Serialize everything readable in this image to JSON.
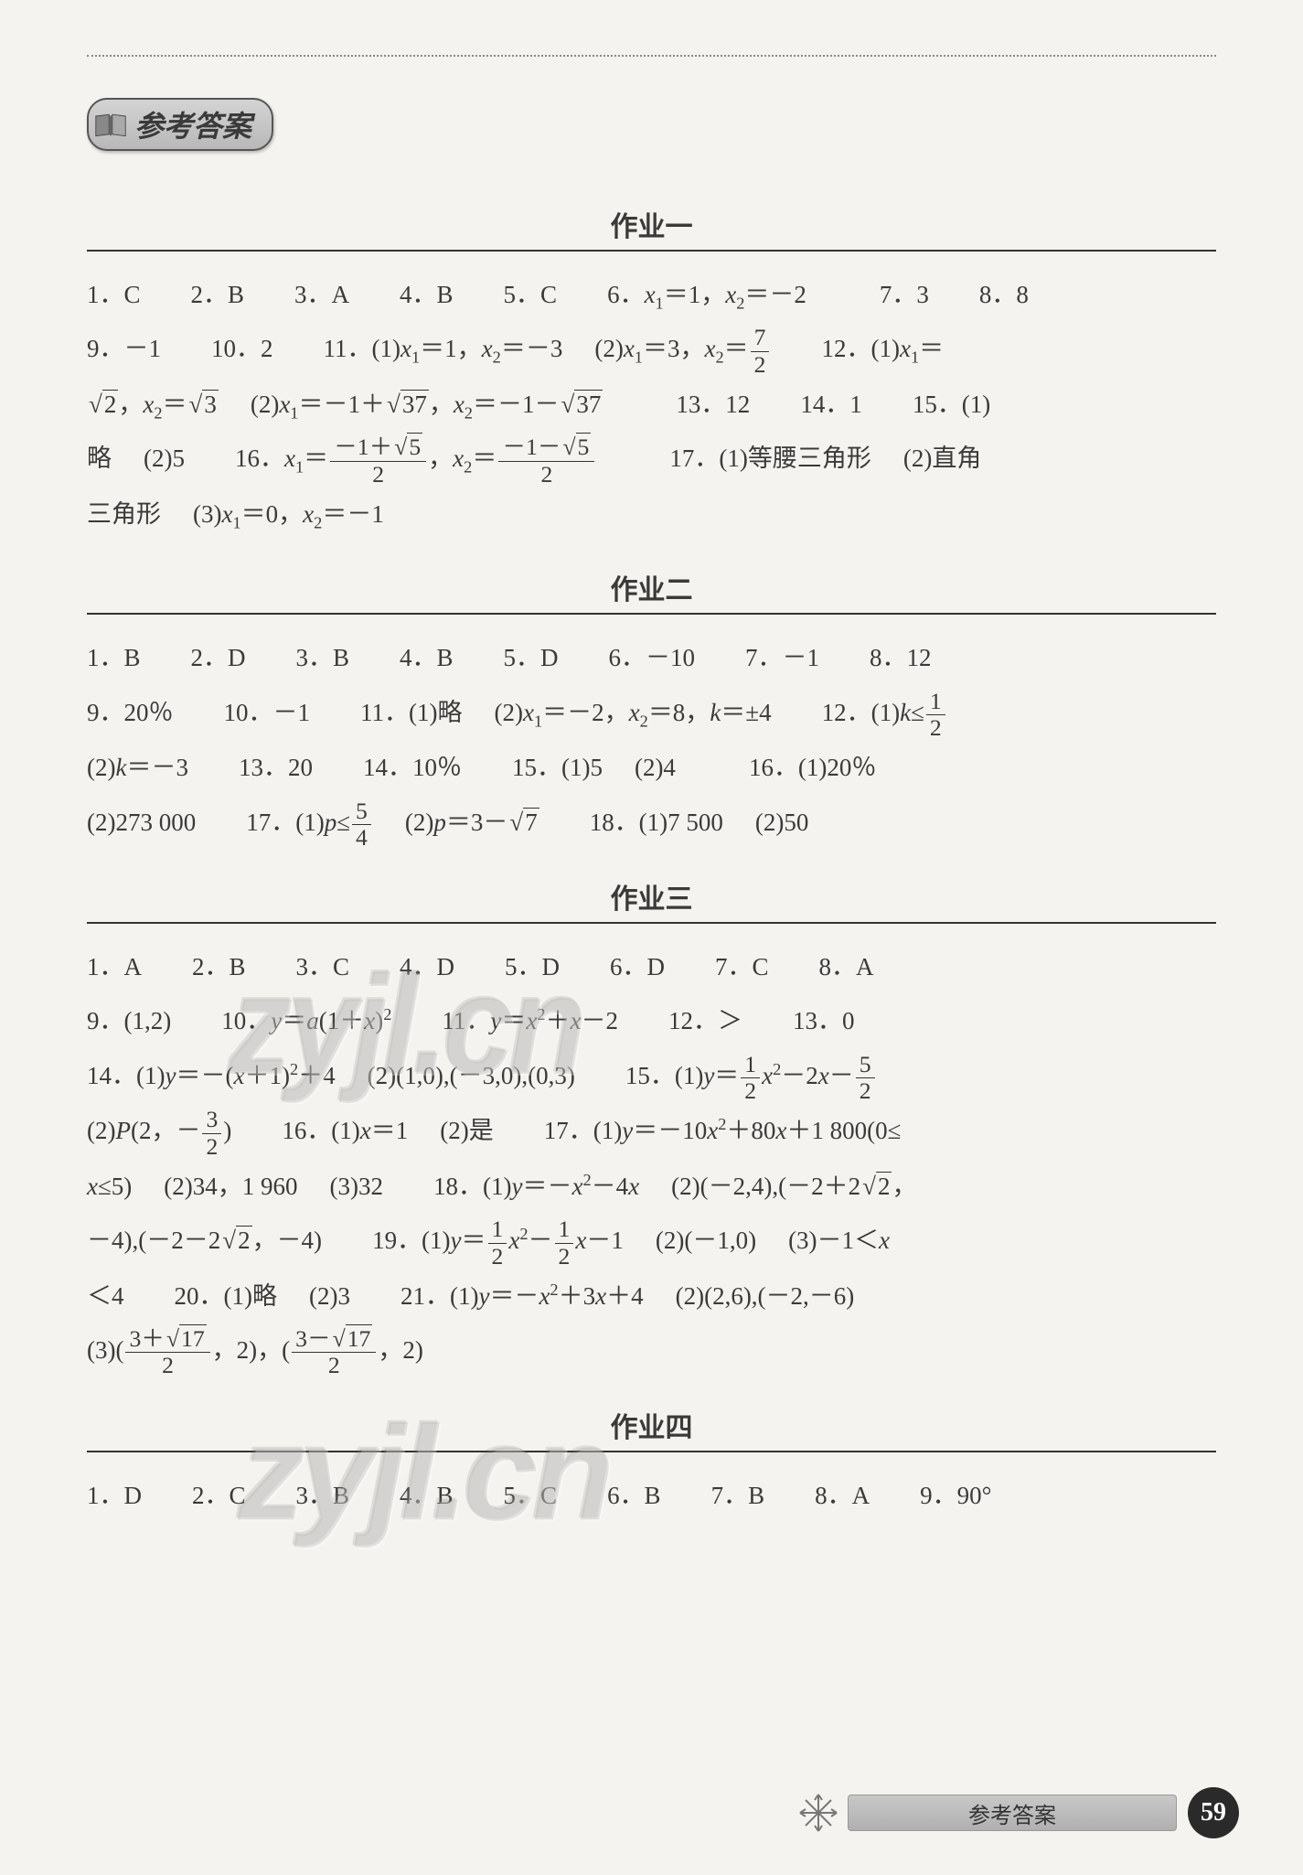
{
  "page_title": "参考答案",
  "sections": [
    {
      "heading": "作业一",
      "answers_html": "1．C<span class='gap g2'></span>2．B<span class='gap g2'></span>3．A<span class='gap g2'></span>4．B<span class='gap g2'></span>5．C<span class='gap g2'></span>6．<span class='ital'>x</span><sub>1</sub>＝1，<span class='ital'>x</span><sub>2</sub>＝－2<span class='gap g3'></span>7．3<span class='gap g2'></span>8．8<br>9．－1<span class='gap g2'></span>10．2<span class='gap g2'></span>11．(1)<span class='ital'>x</span><sub>1</sub>＝1，<span class='ital'>x</span><sub>2</sub>＝－3<span class='gap g1'></span>(2)<span class='ital'>x</span><sub>1</sub>＝3，<span class='ital'>x</span><sub>2</sub>＝<span class='frac'><span class='num'>7</span><span class='den'>2</span></span><span class='gap g2'></span>12．(1)<span class='ital'>x</span><sub>1</sub>＝<br><span class='sqrt'><span class='rad'>2</span></span>，<span class='ital'>x</span><sub>2</sub>＝<span class='sqrt'><span class='rad'>3</span></span><span class='gap g1'></span>(2)<span class='ital'>x</span><sub>1</sub>＝－1＋<span class='sqrt'><span class='rad'>37</span></span>，<span class='ital'>x</span><sub>2</sub>＝－1－<span class='sqrt'><span class='rad'>37</span></span><span class='gap g3'></span>13．12<span class='gap g2'></span>14．1<span class='gap g2'></span>15．(1)<br><span class='cn'>略</span><span class='gap g1'></span>(2)5<span class='gap g2'></span>16．<span class='ital'>x</span><sub>1</sub>＝<span class='frac'><span class='num'>－1＋<span class='sqrt'><span class='rad'>5</span></span></span><span class='den'>2</span></span>，<span class='ital'>x</span><sub>2</sub>＝<span class='frac'><span class='num'>－1－<span class='sqrt'><span class='rad'>5</span></span></span><span class='den'>2</span></span><span class='gap g3'></span>17．(1)<span class='cn'>等腰三角形</span><span class='gap g1'></span>(2)<span class='cn'>直角</span><br><span class='cn'>三角形</span><span class='gap g1'></span>(3)<span class='ital'>x</span><sub>1</sub>＝0，<span class='ital'>x</span><sub>2</sub>＝－1"
    },
    {
      "heading": "作业二",
      "answers_html": "1．B<span class='gap g2'></span>2．D<span class='gap g2'></span>3．B<span class='gap g2'></span>4．B<span class='gap g2'></span>5．D<span class='gap g2'></span>6．－10<span class='gap g2'></span>7．－1<span class='gap g2'></span>8．12<br>9．20％<span class='gap g2'></span>10．－1<span class='gap g2'></span>11．(1)<span class='cn'>略</span><span class='gap g1'></span>(2)<span class='ital'>x</span><sub>1</sub>＝－2，<span class='ital'>x</span><sub>2</sub>＝8，<span class='ital'>k</span>＝±4<span class='gap g2'></span>12．(1)<span class='ital'>k</span>≤<span class='frac'><span class='num'>1</span><span class='den'>2</span></span><br>(2)<span class='ital'>k</span>＝－3<span class='gap g2'></span>13．20<span class='gap g2'></span>14．10％<span class='gap g2'></span>15．(1)5<span class='gap g1'></span>(2)4<span class='gap g3'></span>16．(1)20％<br>(2)273 000<span class='gap g2'></span>17．(1)<span class='ital'>p</span>≤<span class='frac'><span class='num'>5</span><span class='den'>4</span></span><span class='gap g1'></span>(2)<span class='ital'>p</span>＝3－<span class='sqrt'><span class='rad'>7</span></span><span class='gap g2'></span>18．(1)7 500<span class='gap g1'></span>(2)50"
    },
    {
      "heading": "作业三",
      "answers_html": "1．A<span class='gap g2'></span>2．B<span class='gap g2'></span>3．C<span class='gap g2'></span>4．D<span class='gap g2'></span>5．D<span class='gap g2'></span>6．D<span class='gap g2'></span>7．C<span class='gap g2'></span>8．A<br>9．(1,2)<span class='gap g2'></span>10．<span class='ital'>y</span>＝<span class='ital'>a</span>(1＋<span class='ital'>x</span>)<sup>2</sup><span class='gap g2'></span>11．<span class='ital'>y</span>＝<span class='ital'>x</span><sup>2</sup>＋<span class='ital'>x</span>－2<span class='gap g2'></span>12．＞<span class='gap g2'></span>13．0<br>14．(1)<span class='ital'>y</span>＝－(<span class='ital'>x</span>＋1)<sup>2</sup>＋4<span class='gap g1'></span>(2)(1,0),(－3,0),(0,3)<span class='gap g2'></span>15．(1)<span class='ital'>y</span>＝<span class='frac'><span class='num'>1</span><span class='den'>2</span></span><span class='ital'>x</span><sup>2</sup>－2<span class='ital'>x</span>－<span class='frac'><span class='num'>5</span><span class='den'>2</span></span><br>(2)<span class='ital'>P</span>(2，－<span class='frac'><span class='num'>3</span><span class='den'>2</span></span>)<span class='gap g2'></span>16．(1)<span class='ital'>x</span>＝1<span class='gap g1'></span>(2)<span class='cn'>是</span><span class='gap g2'></span>17．(1)<span class='ital'>y</span>＝－10<span class='ital'>x</span><sup>2</sup>＋80<span class='ital'>x</span>＋1 800(0≤<br><span class='ital'>x</span>≤5)<span class='gap g1'></span>(2)34，1 960<span class='gap g1'></span>(3)32<span class='gap g2'></span>18．(1)<span class='ital'>y</span>＝－<span class='ital'>x</span><sup>2</sup>－4<span class='ital'>x</span><span class='gap g1'></span>(2)(－2,4),(－2＋2<span class='sqrt'><span class='rad'>2</span></span>，<br>－4),(－2－2<span class='sqrt'><span class='rad'>2</span></span>，－4)<span class='gap g2'></span>19．(1)<span class='ital'>y</span>＝<span class='frac'><span class='num'>1</span><span class='den'>2</span></span><span class='ital'>x</span><sup>2</sup>－<span class='frac'><span class='num'>1</span><span class='den'>2</span></span><span class='ital'>x</span>－1<span class='gap g1'></span>(2)(－1,0)<span class='gap g1'></span>(3)－1＜<span class='ital'>x</span><br>＜4<span class='gap g2'></span>20．(1)<span class='cn'>略</span><span class='gap g1'></span>(2)3<span class='gap g2'></span>21．(1)<span class='ital'>y</span>＝－<span class='ital'>x</span><sup>2</sup>＋3<span class='ital'>x</span>＋4<span class='gap g1'></span>(2)(2,6),(－2,－6)<br>(3)(<span class='frac'><span class='num'>3＋<span class='sqrt'><span class='rad'>17</span></span></span><span class='den'>2</span></span>，2)，(<span class='frac'><span class='num'>3－<span class='sqrt'><span class='rad'>17</span></span></span><span class='den'>2</span></span>，2)"
    },
    {
      "heading": "作业四",
      "answers_html": "1．D<span class='gap g2'></span>2．C<span class='gap g2'></span>3．B<span class='gap g2'></span>4．B<span class='gap g2'></span>5．C<span class='gap g2'></span>6．B<span class='gap g2'></span>7．B<span class='gap g2'></span>8．A<span class='gap g2'></span>9．90°"
    }
  ],
  "watermark_text": "zyjl.cn",
  "footer_label": "参考答案",
  "page_number": "59",
  "colors": {
    "background": "#f5f3ef",
    "text": "#3a3a3a",
    "badge_bg": "#c0c0c0",
    "footer_bg": "#bcbcbc",
    "circle_bg": "#2a2a2a"
  },
  "fonts": {
    "body": "SimSun",
    "title": "KaiTi",
    "math": "Times New Roman"
  }
}
